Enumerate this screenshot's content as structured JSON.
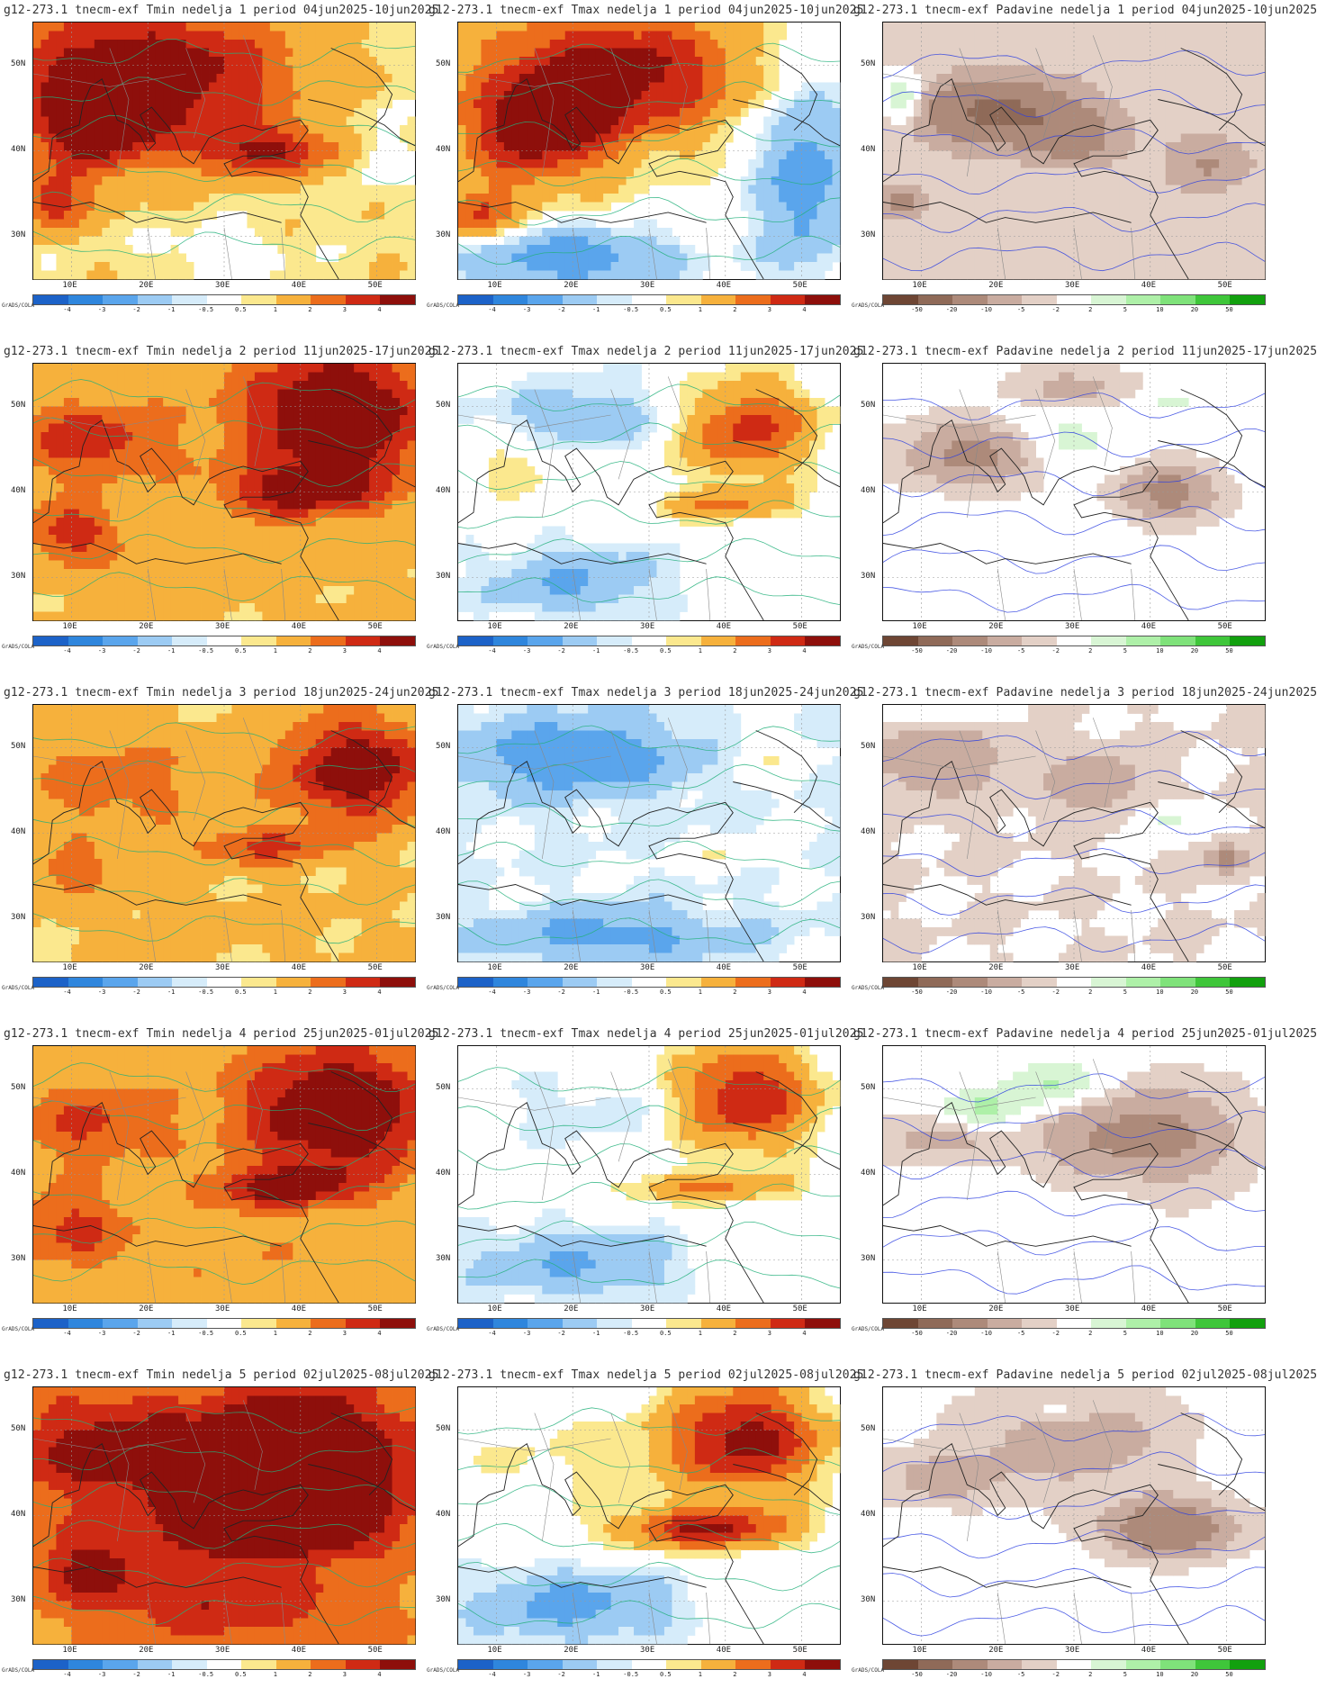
{
  "grads_label": "GrADS/COLA",
  "lat_labels": [
    "50N",
    "40N",
    "30N"
  ],
  "lon_labels": [
    "10E",
    "20E",
    "30E",
    "40E",
    "50E"
  ],
  "legend_temp": {
    "labels": [
      "-4",
      "-3",
      "-2",
      "-1",
      "-0.5",
      "0.5",
      "1",
      "2",
      "3",
      "4"
    ],
    "colors": [
      "#1c62c8",
      "#2f86dd",
      "#5aa5ec",
      "#9ccbf3",
      "#d6ecfa",
      "#ffffff",
      "#fbe88e",
      "#f6b13c",
      "#ec6d1c",
      "#cf2a14",
      "#8e0f0b"
    ]
  },
  "legend_precip": {
    "labels": [
      "-50",
      "-20",
      "-10",
      "-5",
      "-2",
      "2",
      "5",
      "10",
      "20",
      "50"
    ],
    "colors": [
      "#6e4634",
      "#8f6a58",
      "#ad8a7a",
      "#c9aca0",
      "#e3d0c6",
      "#ffffff",
      "#d8f5d4",
      "#aef0a8",
      "#7fe27a",
      "#3fc63a",
      "#12a00e"
    ]
  },
  "panels": [
    {
      "title": "g12-273.1 tnecm-exf Tmin nedelja 1 period 04jun2025-10jun2025",
      "kind": "temp",
      "week": 1
    },
    {
      "title": "g12-273.1 tnecm-exf Tmax nedelja 1 period 04jun2025-10jun2025",
      "kind": "temp",
      "week": 1
    },
    {
      "title": "g12-273.1 tnecm-exf Padavine nedelja 1 period 04jun2025-10jun2025",
      "kind": "precip",
      "week": 1
    },
    {
      "title": "g12-273.1 tnecm-exf Tmin nedelja 2 period 11jun2025-17jun2025",
      "kind": "temp",
      "week": 2
    },
    {
      "title": "g12-273.1 tnecm-exf Tmax nedelja 2 period 11jun2025-17jun2025",
      "kind": "temp",
      "week": 2
    },
    {
      "title": "g12-273.1 tnecm-exf Padavine nedelja 2 period 11jun2025-17jun2025",
      "kind": "precip",
      "week": 2
    },
    {
      "title": "g12-273.1 tnecm-exf Tmin nedelja 3 period 18jun2025-24jun2025",
      "kind": "temp",
      "week": 3
    },
    {
      "title": "g12-273.1 tnecm-exf Tmax nedelja 3 period 18jun2025-24jun2025",
      "kind": "temp",
      "week": 3
    },
    {
      "title": "g12-273.1 tnecm-exf Padavine nedelja 3 period 18jun2025-24jun2025",
      "kind": "precip",
      "week": 3
    },
    {
      "title": "g12-273.1 tnecm-exf Tmin nedelja 4 period 25jun2025-01jul2025",
      "kind": "temp",
      "week": 4
    },
    {
      "title": "g12-273.1 tnecm-exf Tmax nedelja 4 period 25jun2025-01jul2025",
      "kind": "temp",
      "week": 4
    },
    {
      "title": "g12-273.1 tnecm-exf Padavine nedelja 4 period 25jun2025-01jul2025",
      "kind": "precip",
      "week": 4
    },
    {
      "title": "g12-273.1 tnecm-exf Tmin nedelja 5 period 02jul2025-08jul2025",
      "kind": "temp",
      "week": 5
    },
    {
      "title": "g12-273.1 tnecm-exf Tmax nedelja 5 period 02jul2025-08jul2025",
      "kind": "temp",
      "week": 5
    },
    {
      "title": "g12-273.1 tnecm-exf Padavine nedelja 5 period 02jul2025-08jul2025",
      "kind": "precip",
      "week": 5
    }
  ],
  "fields": {
    "p0": {
      "blobs": [
        [
          0.3,
          0.2,
          0.35,
          0.25,
          4.5
        ],
        [
          0.15,
          0.4,
          0.15,
          0.2,
          3.5
        ],
        [
          0.6,
          0.5,
          0.2,
          0.1,
          3
        ],
        [
          0.05,
          0.7,
          0.08,
          0.1,
          3
        ],
        [
          0.5,
          0.9,
          0.15,
          0.1,
          -1
        ],
        [
          0.9,
          0.5,
          0.08,
          0.15,
          -1
        ]
      ],
      "base": 0.8
    },
    "p1": {
      "blobs": [
        [
          0.4,
          0.2,
          0.35,
          0.25,
          4.5
        ],
        [
          0.2,
          0.45,
          0.2,
          0.2,
          3.5
        ],
        [
          0.3,
          0.92,
          0.3,
          0.12,
          -3
        ],
        [
          0.9,
          0.6,
          0.12,
          0.4,
          -3
        ],
        [
          0.05,
          0.75,
          0.1,
          0.1,
          3
        ]
      ],
      "base": 0.2
    },
    "p2": {
      "blobs": [
        [
          0.3,
          0.35,
          0.2,
          0.12,
          -20
        ],
        [
          0.5,
          0.45,
          0.12,
          0.1,
          -10
        ],
        [
          0.05,
          0.3,
          0.06,
          0.1,
          10
        ],
        [
          0.05,
          0.7,
          0.06,
          0.05,
          -10
        ],
        [
          0.85,
          0.55,
          0.1,
          0.1,
          -8
        ]
      ],
      "base": -3
    },
    "p3": {
      "blobs": [
        [
          0.8,
          0.2,
          0.25,
          0.25,
          4.5
        ],
        [
          0.15,
          0.3,
          0.2,
          0.15,
          2.5
        ],
        [
          0.7,
          0.5,
          0.2,
          0.1,
          3
        ],
        [
          0.1,
          0.65,
          0.12,
          0.1,
          2.5
        ],
        [
          0.4,
          0.8,
          0.3,
          0.1,
          0.7
        ]
      ],
      "base": 1.2
    },
    "p4": {
      "blobs": [
        [
          0.75,
          0.25,
          0.18,
          0.18,
          3.5
        ],
        [
          0.7,
          0.55,
          0.18,
          0.06,
          2
        ],
        [
          0.3,
          0.85,
          0.25,
          0.15,
          -2
        ],
        [
          0.35,
          0.2,
          0.3,
          0.15,
          -1.5
        ],
        [
          0.15,
          0.4,
          0.12,
          0.1,
          1
        ]
      ],
      "base": 0
    },
    "p5": {
      "blobs": [
        [
          0.25,
          0.35,
          0.18,
          0.12,
          -12
        ],
        [
          0.75,
          0.5,
          0.12,
          0.1,
          -12
        ],
        [
          0.45,
          0.3,
          0.15,
          0.12,
          6
        ],
        [
          0.5,
          0.1,
          0.15,
          0.08,
          -6
        ],
        [
          0.75,
          0.15,
          0.1,
          0.05,
          4
        ]
      ],
      "base": -1
    },
    "p6": {
      "blobs": [
        [
          0.85,
          0.25,
          0.2,
          0.2,
          4
        ],
        [
          0.2,
          0.3,
          0.25,
          0.2,
          1.5
        ],
        [
          0.6,
          0.55,
          0.2,
          0.08,
          2
        ],
        [
          0.1,
          0.65,
          0.12,
          0.1,
          1.5
        ],
        [
          0.5,
          0.85,
          0.3,
          0.1,
          0.6
        ]
      ],
      "base": 1.0
    },
    "p7": {
      "blobs": [
        [
          0.3,
          0.2,
          0.3,
          0.15,
          -2.5
        ],
        [
          0.4,
          0.9,
          0.3,
          0.1,
          -2
        ],
        [
          0.8,
          0.2,
          0.1,
          0.1,
          1
        ],
        [
          0.7,
          0.6,
          0.1,
          0.05,
          1
        ]
      ],
      "base": -0.5
    },
    "p8": {
      "blobs": [
        [
          0.15,
          0.2,
          0.15,
          0.15,
          -8
        ],
        [
          0.55,
          0.3,
          0.12,
          0.1,
          -8
        ],
        [
          0.15,
          0.05,
          0.15,
          0.05,
          5
        ],
        [
          0.75,
          0.45,
          0.08,
          0.05,
          5
        ],
        [
          0.9,
          0.6,
          0.05,
          0.05,
          -10
        ]
      ],
      "base": -2
    },
    "p9": {
      "blobs": [
        [
          0.8,
          0.25,
          0.25,
          0.25,
          4.5
        ],
        [
          0.15,
          0.3,
          0.2,
          0.15,
          2
        ],
        [
          0.65,
          0.55,
          0.2,
          0.08,
          3
        ],
        [
          0.1,
          0.7,
          0.15,
          0.15,
          2
        ],
        [
          0.5,
          0.8,
          0.3,
          0.15,
          0.7
        ]
      ],
      "base": 1.2
    },
    "p10": {
      "blobs": [
        [
          0.75,
          0.2,
          0.18,
          0.2,
          4
        ],
        [
          0.65,
          0.55,
          0.22,
          0.06,
          2
        ],
        [
          0.3,
          0.85,
          0.3,
          0.15,
          -2
        ],
        [
          0.35,
          0.25,
          0.3,
          0.15,
          -0.8
        ]
      ],
      "base": 0
    },
    "p11": {
      "blobs": [
        [
          0.25,
          0.25,
          0.12,
          0.08,
          8
        ],
        [
          0.45,
          0.15,
          0.12,
          0.1,
          7
        ],
        [
          0.6,
          0.35,
          0.2,
          0.15,
          -10
        ],
        [
          0.15,
          0.35,
          0.15,
          0.1,
          -6
        ],
        [
          0.8,
          0.35,
          0.15,
          0.2,
          -6
        ]
      ],
      "base": -1
    },
    "p12": {
      "blobs": [
        [
          0.7,
          0.3,
          0.3,
          0.3,
          4.5
        ],
        [
          0.2,
          0.25,
          0.25,
          0.2,
          3
        ],
        [
          0.6,
          0.55,
          0.25,
          0.1,
          4
        ],
        [
          0.15,
          0.7,
          0.15,
          0.15,
          2.5
        ],
        [
          0.5,
          0.85,
          0.3,
          0.15,
          2
        ]
      ],
      "base": 1.8
    },
    "p13": {
      "blobs": [
        [
          0.75,
          0.2,
          0.2,
          0.2,
          4.5
        ],
        [
          0.65,
          0.55,
          0.22,
          0.08,
          4
        ],
        [
          0.3,
          0.85,
          0.3,
          0.15,
          -2.5
        ],
        [
          0.3,
          0.3,
          0.25,
          0.15,
          0.5
        ]
      ],
      "base": 0.1
    },
    "p14": {
      "blobs": [
        [
          0.75,
          0.55,
          0.15,
          0.1,
          -18
        ],
        [
          0.5,
          0.2,
          0.25,
          0.2,
          -7
        ],
        [
          0.15,
          0.35,
          0.15,
          0.1,
          -6
        ],
        [
          0.45,
          0.1,
          0.08,
          0.05,
          5
        ]
      ],
      "base": -1
    }
  }
}
